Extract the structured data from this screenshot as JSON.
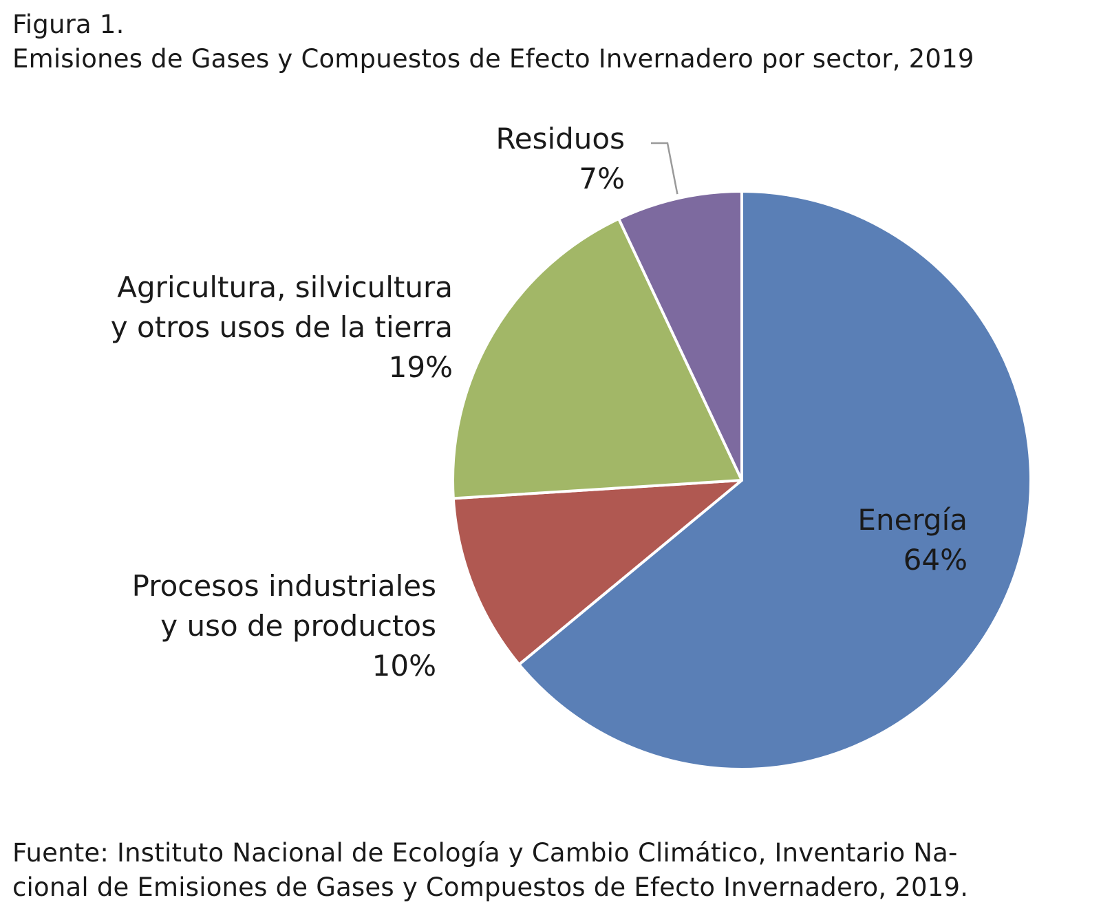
{
  "figure": {
    "label": "Figura 1.",
    "title": "Emisiones de Gases y Compuestos de Efecto Invernadero por sector, 2019"
  },
  "source": {
    "line1": "Fuente: Instituto Nacional de Ecología y Cambio Climático, Inventario Na-",
    "line2": "cional de Emisiones de Gases y Compuestos de Efecto Invernadero, 2019."
  },
  "chart_data": {
    "type": "pie",
    "title": "Emisiones de Gases y Compuestos de Efecto Invernadero por sector, 2019",
    "unit": "%",
    "start_angle_deg": 0,
    "direction": "clockwise",
    "slices": [
      {
        "name": "Energía",
        "name_lines": [
          "Energía"
        ],
        "value": 64,
        "value_label": "64%",
        "color": "#5A7FB6",
        "label_position": "inside"
      },
      {
        "name": "Procesos industriales y uso de productos",
        "name_lines": [
          "Procesos industriales",
          "y uso de productos"
        ],
        "value": 10,
        "value_label": "10%",
        "color": "#B05851",
        "label_position": "outside-left"
      },
      {
        "name": "Agricultura, silvicultura y otros usos de la tierra",
        "name_lines": [
          "Agricultura, silvicultura",
          "y otros usos de la tierra"
        ],
        "value": 19,
        "value_label": "19%",
        "color": "#A2B767",
        "label_position": "outside-left"
      },
      {
        "name": "Residuos",
        "name_lines": [
          "Residuos"
        ],
        "value": 7,
        "value_label": "7%",
        "color": "#7D6A9F",
        "label_position": "outside-top-with-leader"
      }
    ]
  }
}
